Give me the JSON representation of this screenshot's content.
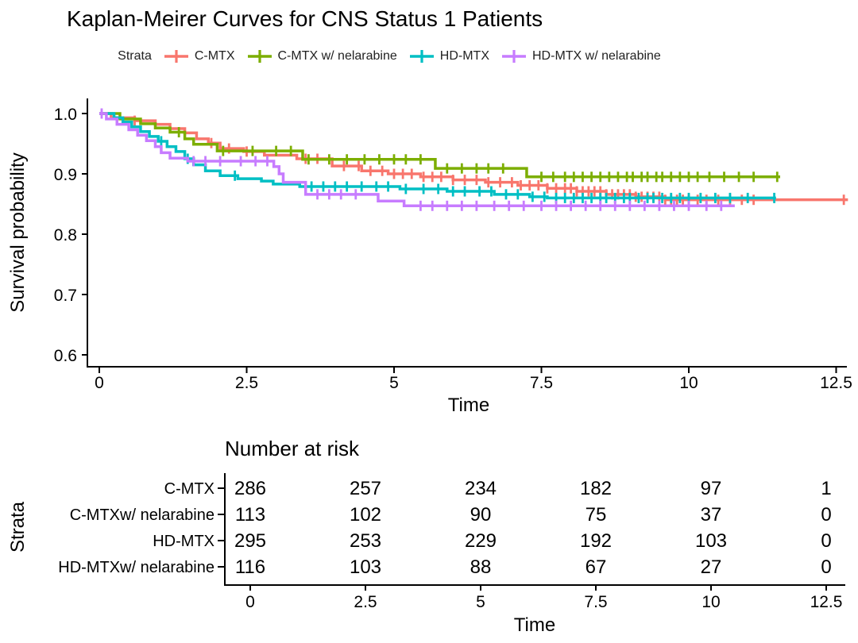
{
  "title": "Kaplan-Meirer Curves for CNS Status 1 Patients",
  "legend": {
    "title": "Strata",
    "items": [
      {
        "label": "C-MTX",
        "color": "#F8766D"
      },
      {
        "label": "C-MTX w/ nelarabine",
        "color": "#7CAE00"
      },
      {
        "label": "HD-MTX",
        "color": "#00BFC4"
      },
      {
        "label": "HD-MTX w/ nelarabine",
        "color": "#C77CFF"
      }
    ]
  },
  "chart_data": {
    "type": "line",
    "subtype": "kaplan-meier-step",
    "title": "Kaplan-Meirer Curves for CNS Status 1 Patients",
    "xlabel": "Time",
    "ylabel": "Survival probability",
    "x_ticks": [
      "0",
      "2.5",
      "5",
      "7.5",
      "10",
      "12.5"
    ],
    "y_ticks": [
      "1.0",
      "0.9",
      "0.8",
      "0.7",
      "0.6"
    ],
    "xlim": [
      0,
      13.2
    ],
    "ylim": [
      0.58,
      1.02
    ],
    "grid": false,
    "legend_position": "top",
    "series": [
      {
        "id": "c_mtx",
        "name": "C-MTX",
        "color": "#F8766D",
        "steps": [
          [
            0,
            1.0
          ],
          [
            0.2,
            0.993
          ],
          [
            0.6,
            0.988
          ],
          [
            0.95,
            0.982
          ],
          [
            1.2,
            0.975
          ],
          [
            1.45,
            0.968
          ],
          [
            1.65,
            0.958
          ],
          [
            1.85,
            0.951
          ],
          [
            2.05,
            0.942
          ],
          [
            2.45,
            0.937
          ],
          [
            2.8,
            0.931
          ],
          [
            3.35,
            0.925
          ],
          [
            3.95,
            0.913
          ],
          [
            4.45,
            0.905
          ],
          [
            4.9,
            0.9
          ],
          [
            5.45,
            0.895
          ],
          [
            6.0,
            0.89
          ],
          [
            6.55,
            0.886
          ],
          [
            7.1,
            0.881
          ],
          [
            7.6,
            0.876
          ],
          [
            8.1,
            0.871
          ],
          [
            8.6,
            0.866
          ],
          [
            9.1,
            0.862
          ],
          [
            9.6,
            0.857
          ],
          [
            12.7,
            0.857
          ]
        ],
        "censors": [
          0.6,
          1.9,
          2.2,
          2.5,
          3.5,
          3.7,
          4.15,
          4.4,
          4.6,
          4.8,
          5.0,
          5.15,
          5.3,
          5.5,
          5.65,
          5.8,
          6.0,
          6.2,
          6.4,
          6.6,
          6.8,
          7.0,
          7.15,
          7.3,
          7.45,
          7.6,
          7.75,
          7.9,
          8.0,
          8.1,
          8.2,
          8.3,
          8.4,
          8.5,
          8.6,
          8.7,
          8.8,
          8.9,
          9.0,
          9.1,
          9.2,
          9.3,
          9.4,
          9.5,
          9.6,
          9.7,
          9.8,
          9.9,
          10.0,
          10.15,
          10.3,
          10.5,
          10.7,
          10.9,
          11.1,
          12.63
        ]
      },
      {
        "id": "c_mtx_nel",
        "name": "C-MTX w/ nelarabine",
        "color": "#7CAE00",
        "steps": [
          [
            0,
            1.0
          ],
          [
            0.35,
            0.991
          ],
          [
            0.7,
            0.983
          ],
          [
            0.95,
            0.976
          ],
          [
            1.2,
            0.969
          ],
          [
            1.45,
            0.958
          ],
          [
            1.6,
            0.949
          ],
          [
            2.0,
            0.938
          ],
          [
            3.45,
            0.924
          ],
          [
            5.7,
            0.909
          ],
          [
            7.25,
            0.895
          ],
          [
            11.55,
            0.895
          ]
        ],
        "censors": [
          1.35,
          2.1,
          2.6,
          3.0,
          3.25,
          3.55,
          3.9,
          4.2,
          4.5,
          4.75,
          5.0,
          5.2,
          5.45,
          5.9,
          6.15,
          6.4,
          6.6,
          6.85,
          7.5,
          7.7,
          7.9,
          8.05,
          8.2,
          8.35,
          8.5,
          8.65,
          8.8,
          8.95,
          9.05,
          9.2,
          9.3,
          9.45,
          9.55,
          9.7,
          9.85,
          10.0,
          10.15,
          10.35,
          10.6,
          10.85,
          11.1,
          11.5
        ]
      },
      {
        "id": "hd_mtx",
        "name": "HD-MTX",
        "color": "#00BFC4",
        "steps": [
          [
            0,
            1.0
          ],
          [
            0.25,
            0.993
          ],
          [
            0.4,
            0.986
          ],
          [
            0.55,
            0.978
          ],
          [
            0.7,
            0.97
          ],
          [
            0.85,
            0.962
          ],
          [
            1.0,
            0.954
          ],
          [
            1.15,
            0.945
          ],
          [
            1.3,
            0.937
          ],
          [
            1.45,
            0.925
          ],
          [
            1.6,
            0.915
          ],
          [
            1.8,
            0.905
          ],
          [
            2.05,
            0.897
          ],
          [
            2.35,
            0.892
          ],
          [
            2.75,
            0.888
          ],
          [
            2.95,
            0.883
          ],
          [
            3.4,
            0.879
          ],
          [
            5.1,
            0.875
          ],
          [
            5.9,
            0.871
          ],
          [
            6.7,
            0.866
          ],
          [
            7.3,
            0.862
          ],
          [
            7.6,
            0.86
          ],
          [
            11.48,
            0.86
          ]
        ],
        "censors": [
          1.05,
          1.5,
          2.3,
          3.6,
          3.8,
          4.0,
          4.2,
          4.45,
          4.7,
          4.9,
          5.2,
          5.5,
          5.75,
          6.0,
          6.2,
          6.45,
          6.65,
          6.9,
          7.1,
          7.35,
          7.55,
          7.75,
          7.9,
          8.05,
          8.2,
          8.35,
          8.5,
          8.6,
          8.75,
          8.9,
          9.0,
          9.15,
          9.3,
          9.4,
          9.55,
          9.7,
          9.85,
          10.0,
          10.2,
          10.45,
          10.7,
          11.0,
          11.45
        ]
      },
      {
        "id": "hd_mtx_nel",
        "name": "HD-MTX w/ nelarabine",
        "color": "#C77CFF",
        "steps": [
          [
            0,
            1.0
          ],
          [
            0.12,
            0.991
          ],
          [
            0.3,
            0.982
          ],
          [
            0.5,
            0.973
          ],
          [
            0.65,
            0.964
          ],
          [
            0.8,
            0.955
          ],
          [
            0.95,
            0.945
          ],
          [
            1.05,
            0.935
          ],
          [
            1.2,
            0.926
          ],
          [
            1.5,
            0.921
          ],
          [
            2.96,
            0.912
          ],
          [
            3.05,
            0.9
          ],
          [
            3.12,
            0.886
          ],
          [
            3.5,
            0.866
          ],
          [
            4.73,
            0.855
          ],
          [
            5.17,
            0.847
          ],
          [
            10.78,
            0.847
          ]
        ],
        "censors": [
          0.04,
          1.6,
          1.8,
          2.05,
          2.4,
          2.65,
          2.85,
          3.7,
          3.9,
          4.1,
          4.35,
          5.45,
          5.65,
          5.9,
          6.15,
          6.4,
          6.7,
          6.95,
          7.2,
          7.5,
          7.75,
          8.0,
          8.25,
          8.5,
          8.75,
          9.0,
          9.25,
          9.5,
          9.75,
          10.0,
          10.3,
          10.55
        ]
      }
    ]
  },
  "risk_table": {
    "title": "Number at risk",
    "ylabel": "Strata",
    "xlabel": "Time",
    "x_tick_times": [
      0,
      2.5,
      5,
      7.5,
      10,
      12.5
    ],
    "x_ticks": [
      "0",
      "2.5",
      "5",
      "7.5",
      "10",
      "12.5"
    ],
    "rows": [
      {
        "label": "C-MTX",
        "color": "#F8766D",
        "values": [
          "286",
          "257",
          "234",
          "182",
          "97",
          "1"
        ]
      },
      {
        "label": "C-MTXw/ nelarabine",
        "color": "#7CAE00",
        "values": [
          "113",
          "102",
          "90",
          "75",
          "37",
          "0"
        ]
      },
      {
        "label": "HD-MTX",
        "color": "#00BFC4",
        "values": [
          "295",
          "253",
          "229",
          "192",
          "103",
          "0"
        ]
      },
      {
        "label": "HD-MTXw/ nelarabine",
        "color": "#C77CFF",
        "values": [
          "116",
          "103",
          "88",
          "67",
          "27",
          "0"
        ]
      }
    ]
  }
}
